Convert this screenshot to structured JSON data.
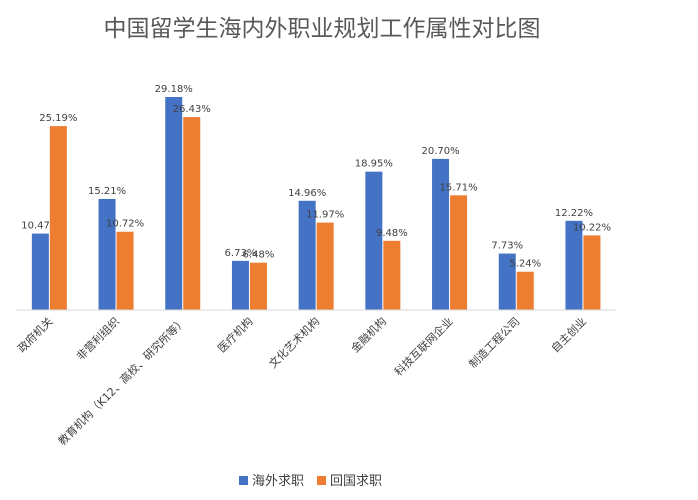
{
  "chart_data": {
    "type": "bar",
    "title": "中国留学生海内外职业规划工作属性对比图",
    "categories": [
      "政府机关",
      "非营利组织",
      "教育机构（K12、高校、研究所等）",
      "医疗机构",
      "文化艺术机构",
      "金融机构",
      "科技互联网企业",
      "制造工程公司",
      "自主创业"
    ],
    "series": [
      {
        "name": "海外求职",
        "color": "#4472C4",
        "values": [
          10.47,
          15.21,
          29.18,
          6.73,
          14.96,
          18.95,
          20.7,
          7.73,
          12.22
        ],
        "labels": [
          "10.47%",
          "15.21%",
          "29.18%",
          "6.73%",
          "14.96%",
          "18.95%",
          "20.70%",
          "7.73%",
          "12.22%"
        ]
      },
      {
        "name": "回国求职",
        "color": "#ED7D31",
        "values": [
          25.19,
          10.72,
          26.43,
          6.48,
          11.97,
          9.48,
          15.71,
          5.24,
          10.22
        ],
        "labels": [
          "25.19%",
          "10.72%",
          "26.43%",
          "6.48%",
          "11.97%",
          "9.48%",
          "15.71%",
          "5.24%",
          "10.22%"
        ]
      }
    ],
    "unit": "%",
    "ylim": [
      0,
      30
    ],
    "grid": false,
    "legend_position": "bottom"
  }
}
